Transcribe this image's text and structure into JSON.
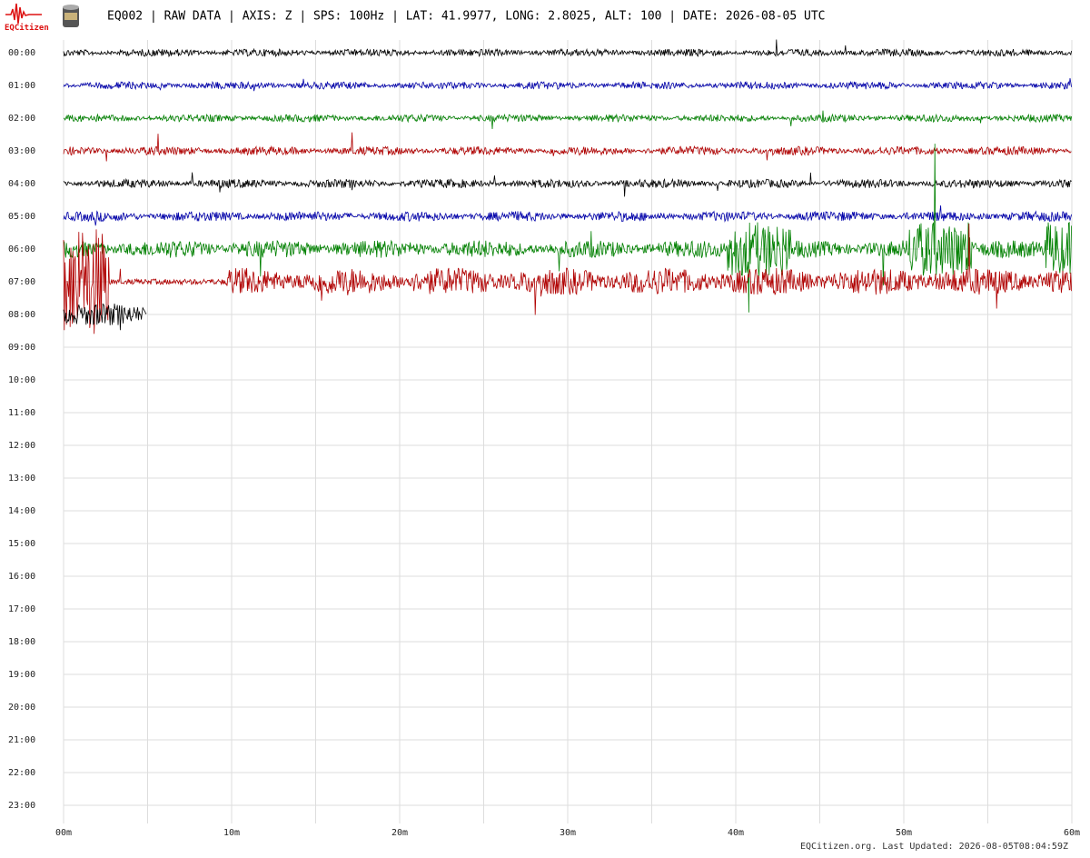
{
  "logo": {
    "text": "EQCitizen"
  },
  "header": {
    "title": "EQ002 | RAW DATA | AXIS: Z | SPS: 100Hz | LAT: 41.9977, LONG: 2.8025, ALT: 100 | DATE: 2026-08-05 UTC"
  },
  "helicorder": {
    "rows": [
      "00:00",
      "01:00",
      "02:00",
      "03:00",
      "04:00",
      "05:00",
      "06:00",
      "07:00",
      "08:00",
      "09:00",
      "10:00",
      "11:00",
      "12:00",
      "13:00",
      "14:00",
      "15:00",
      "16:00",
      "17:00",
      "18:00",
      "19:00",
      "20:00",
      "21:00",
      "22:00",
      "23:00"
    ],
    "minutes": [
      "00m",
      "10m",
      "20m",
      "30m",
      "40m",
      "50m",
      "60m"
    ],
    "trace_colors": [
      "#000000",
      "#0000aa",
      "#008000",
      "#b00000"
    ]
  },
  "footer": {
    "text": "EQCitizen.org. Last Updated: 2026-08-05T08:04:59Z"
  }
}
